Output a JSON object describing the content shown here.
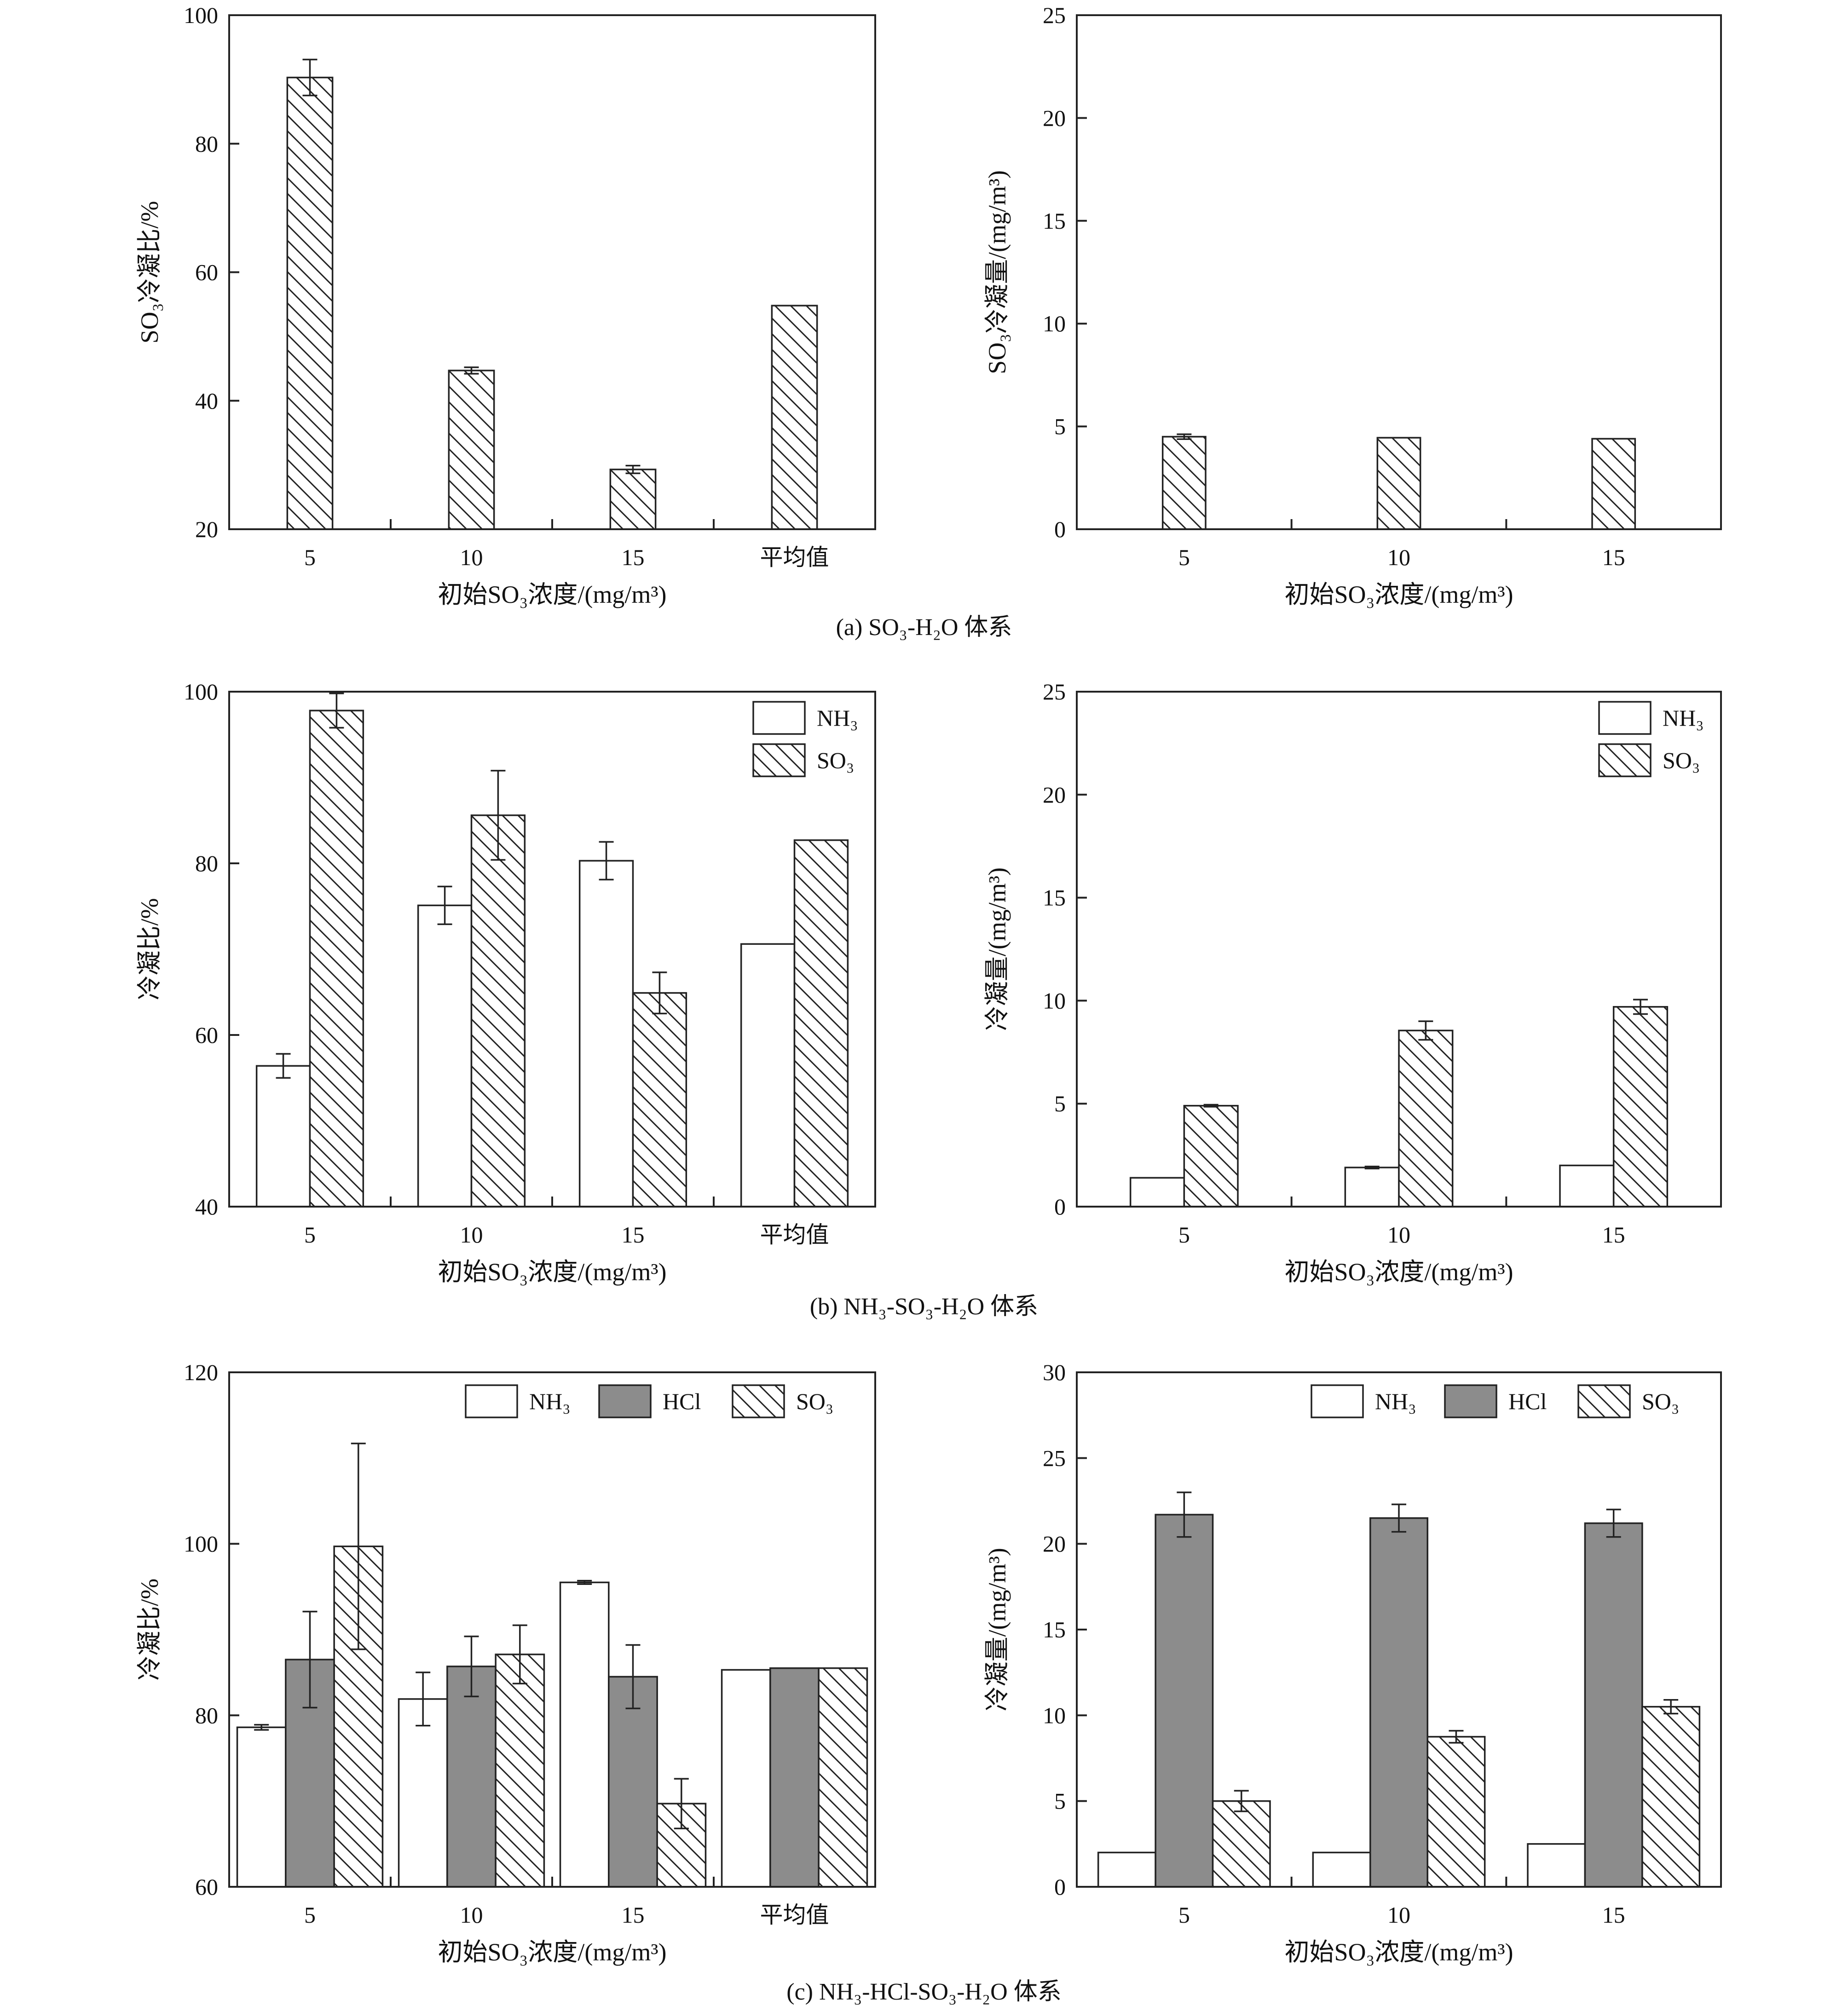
{
  "captions": [
    "(a) SO₃-H₂O 体系",
    "(b) NH₃-SO₃-H₂O 体系",
    "(c) NH₃-HCl-SO₃-H₂O 体系"
  ],
  "colors": {
    "white": "#ffffff",
    "hcl": "#8c8c8c",
    "ink": "#222222"
  },
  "chart_data": [
    {
      "id": "a-left",
      "type": "bar",
      "xlabel": "初始SO₃浓度/(mg/m³)",
      "ylabel": "SO₃冷凝比/%",
      "ylim": [
        20,
        100
      ],
      "yticks": [
        20,
        40,
        60,
        80,
        100
      ],
      "categories": [
        "5",
        "10",
        "15",
        "平均值"
      ],
      "series": [
        {
          "name": "SO₃",
          "pattern": "hatch",
          "values": [
            90.3,
            44.7,
            29.3,
            54.8
          ],
          "errors": [
            2.8,
            0.5,
            0.6,
            0
          ]
        }
      ]
    },
    {
      "id": "a-right",
      "type": "bar",
      "xlabel": "初始SO₃浓度/(mg/m³)",
      "ylabel": "SO₃冷凝量/(mg/m³)",
      "ylim": [
        0,
        25
      ],
      "yticks": [
        0,
        5,
        10,
        15,
        20,
        25
      ],
      "categories": [
        "5",
        "10",
        "15"
      ],
      "series": [
        {
          "name": "SO₃",
          "pattern": "hatch",
          "values": [
            4.5,
            4.45,
            4.4
          ],
          "errors": [
            0.12,
            0,
            0
          ]
        }
      ]
    },
    {
      "id": "b-left",
      "type": "bar",
      "xlabel": "初始SO₃浓度/(mg/m³)",
      "ylabel": "冷凝比/%",
      "ylim": [
        40,
        100
      ],
      "yticks": [
        40,
        60,
        80,
        100
      ],
      "categories": [
        "5",
        "10",
        "15",
        "平均值"
      ],
      "legend_position": "top-right",
      "series": [
        {
          "name": "NH₃",
          "pattern": "white",
          "values": [
            56.4,
            75.1,
            80.3,
            70.6
          ],
          "errors": [
            1.4,
            2.2,
            2.2,
            0
          ]
        },
        {
          "name": "SO₃",
          "pattern": "hatch",
          "values": [
            97.8,
            85.6,
            64.9,
            82.7
          ],
          "errors": [
            2.0,
            5.2,
            2.4,
            0
          ]
        }
      ]
    },
    {
      "id": "b-right",
      "type": "bar",
      "xlabel": "初始SO₃浓度/(mg/m³)",
      "ylabel": "冷凝量/(mg/m³)",
      "ylim": [
        0,
        25
      ],
      "yticks": [
        0,
        5,
        10,
        15,
        20,
        25
      ],
      "categories": [
        "5",
        "10",
        "15"
      ],
      "legend_position": "top-right",
      "series": [
        {
          "name": "NH₃",
          "pattern": "white",
          "values": [
            1.4,
            1.9,
            2.0
          ],
          "errors": [
            0,
            0.05,
            0
          ]
        },
        {
          "name": "SO₃",
          "pattern": "hatch",
          "values": [
            4.9,
            8.55,
            9.7
          ],
          "errors": [
            0.05,
            0.45,
            0.35
          ]
        }
      ]
    },
    {
      "id": "c-left",
      "type": "bar",
      "xlabel": "初始SO₃浓度/(mg/m³)",
      "ylabel": "冷凝比/%",
      "ylim": [
        60,
        120
      ],
      "yticks": [
        60,
        80,
        100,
        120
      ],
      "categories": [
        "5",
        "10",
        "15",
        "平均值"
      ],
      "legend_position": "top-right",
      "series": [
        {
          "name": "NH₃",
          "pattern": "white",
          "values": [
            78.6,
            81.9,
            95.5,
            85.3
          ],
          "errors": [
            0.3,
            3.1,
            0.2,
            0
          ]
        },
        {
          "name": "HCl",
          "pattern": "gray",
          "values": [
            86.5,
            85.7,
            84.5,
            85.5
          ],
          "errors": [
            5.6,
            3.5,
            3.7,
            0
          ]
        },
        {
          "name": "SO₃",
          "pattern": "hatch",
          "values": [
            99.7,
            87.1,
            69.7,
            85.5
          ],
          "errors": [
            12.0,
            3.4,
            2.9,
            0
          ]
        }
      ]
    },
    {
      "id": "c-right",
      "type": "bar",
      "xlabel": "初始SO₃浓度/(mg/m³)",
      "ylabel": "冷凝量/(mg/m³)",
      "ylim": [
        0,
        30
      ],
      "yticks": [
        0,
        5,
        10,
        15,
        20,
        25,
        30
      ],
      "categories": [
        "5",
        "10",
        "15"
      ],
      "legend_position": "top-right",
      "series": [
        {
          "name": "NH₃",
          "pattern": "white",
          "values": [
            2.0,
            2.0,
            2.5
          ],
          "errors": [
            0,
            0,
            0
          ]
        },
        {
          "name": "HCl",
          "pattern": "gray",
          "values": [
            21.7,
            21.5,
            21.2
          ],
          "errors": [
            1.3,
            0.8,
            0.8
          ]
        },
        {
          "name": "SO₃",
          "pattern": "hatch",
          "values": [
            5.0,
            8.75,
            10.5
          ],
          "errors": [
            0.6,
            0.35,
            0.4
          ]
        }
      ]
    }
  ]
}
